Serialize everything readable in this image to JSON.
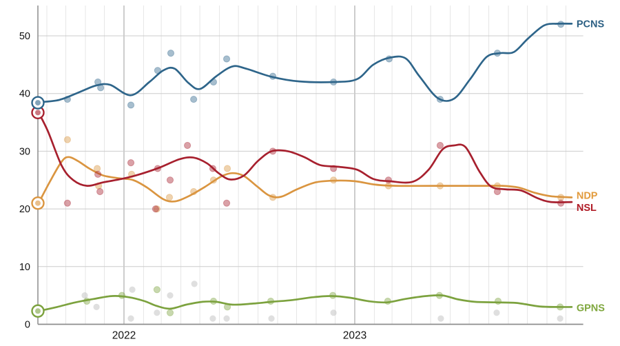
{
  "chart_data": {
    "type": "scatter",
    "subtype": "poll-scatter-with-smoothed-trend-lines",
    "title": "",
    "xlabel": "",
    "ylabel": "",
    "grid": {
      "horizontal_step": 10,
      "vertical": "monthly",
      "dark_vertical_at_year_start": true
    },
    "legend_position": "right-end-labels",
    "x_axis": {
      "domain_years": [
        2021.627,
        2023.99
      ],
      "ticks": [
        {
          "label": "2022",
          "year": 2022.0
        },
        {
          "label": "2023",
          "year": 2023.0
        }
      ]
    },
    "y_axis": {
      "domain": [
        0,
        53.5
      ],
      "ticks": [
        0,
        10,
        20,
        30,
        40,
        50
      ]
    },
    "series": [
      {
        "name": "GPNS",
        "label": "GPNS",
        "color": "#7ca23e",
        "label_color": "#7fa73e",
        "election_result": {
          "year": 2021.627,
          "value": 2.3
        },
        "trend": [
          [
            2021.63,
            2.3
          ],
          [
            2021.71,
            3.0
          ],
          [
            2021.79,
            3.8
          ],
          [
            2021.87,
            4.4
          ],
          [
            2021.95,
            4.9
          ],
          [
            2022.02,
            4.7
          ],
          [
            2022.09,
            4.0
          ],
          [
            2022.14,
            3.2
          ],
          [
            2022.2,
            2.7
          ],
          [
            2022.27,
            3.4
          ],
          [
            2022.34,
            3.9
          ],
          [
            2022.4,
            3.9
          ],
          [
            2022.47,
            3.4
          ],
          [
            2022.56,
            3.6
          ],
          [
            2022.64,
            3.9
          ],
          [
            2022.73,
            4.2
          ],
          [
            2022.82,
            4.7
          ],
          [
            2022.9,
            4.9
          ],
          [
            2022.98,
            4.6
          ],
          [
            2023.06,
            4.0
          ],
          [
            2023.14,
            3.8
          ],
          [
            2023.22,
            4.4
          ],
          [
            2023.31,
            4.9
          ],
          [
            2023.38,
            5.0
          ],
          [
            2023.45,
            4.3
          ],
          [
            2023.52,
            3.9
          ],
          [
            2023.61,
            3.8
          ],
          [
            2023.7,
            3.7
          ],
          [
            2023.8,
            3.1
          ],
          [
            2023.88,
            3.0
          ],
          [
            2023.94,
            3.0
          ]
        ],
        "polls": [
          [
            2021.839,
            4
          ],
          [
            2021.991,
            5
          ],
          [
            2022.143,
            6
          ],
          [
            2022.2,
            2
          ],
          [
            2022.388,
            4
          ],
          [
            2022.448,
            3
          ],
          [
            2022.636,
            4
          ],
          [
            2022.905,
            5
          ],
          [
            2023.143,
            4
          ],
          [
            2023.367,
            5
          ],
          [
            2023.621,
            4
          ],
          [
            2023.89,
            3
          ]
        ]
      },
      {
        "name": "NDP",
        "label": "NDP",
        "color": "#da9540",
        "label_color": "#e29b3d",
        "election_result": {
          "year": 2021.627,
          "value": 21.0
        },
        "trend": [
          [
            2021.63,
            21.0
          ],
          [
            2021.68,
            24.8
          ],
          [
            2021.73,
            28.2
          ],
          [
            2021.76,
            29.0
          ],
          [
            2021.8,
            28.3
          ],
          [
            2021.85,
            27.0
          ],
          [
            2021.91,
            25.8
          ],
          [
            2021.98,
            25.3
          ],
          [
            2022.04,
            25.0
          ],
          [
            2022.1,
            23.7
          ],
          [
            2022.17,
            21.7
          ],
          [
            2022.22,
            21.3
          ],
          [
            2022.28,
            22.2
          ],
          [
            2022.35,
            23.8
          ],
          [
            2022.42,
            25.6
          ],
          [
            2022.47,
            26.2
          ],
          [
            2022.52,
            25.7
          ],
          [
            2022.58,
            23.8
          ],
          [
            2022.63,
            22.3
          ],
          [
            2022.68,
            22.1
          ],
          [
            2022.75,
            23.4
          ],
          [
            2022.83,
            24.6
          ],
          [
            2022.91,
            24.9
          ],
          [
            2023.0,
            24.8
          ],
          [
            2023.09,
            24.2
          ],
          [
            2023.18,
            24.0
          ],
          [
            2023.35,
            24.0
          ],
          [
            2023.55,
            24.0
          ],
          [
            2023.64,
            24.0
          ],
          [
            2023.71,
            23.7
          ],
          [
            2023.78,
            22.8
          ],
          [
            2023.85,
            22.2
          ],
          [
            2023.94,
            22.0
          ]
        ],
        "polls": [
          [
            2021.755,
            32
          ],
          [
            2021.884,
            27
          ],
          [
            2021.89,
            24
          ],
          [
            2022.033,
            26
          ],
          [
            2022.143,
            20
          ],
          [
            2022.197,
            22
          ],
          [
            2022.302,
            23
          ],
          [
            2022.388,
            25
          ],
          [
            2022.448,
            27
          ],
          [
            2022.645,
            22
          ],
          [
            2022.908,
            25
          ],
          [
            2023.146,
            24
          ],
          [
            2023.37,
            24
          ],
          [
            2023.618,
            24
          ],
          [
            2023.893,
            22
          ]
        ]
      },
      {
        "name": "NSL",
        "label": "NSL",
        "color": "#a7202e",
        "label_color": "#b01b26",
        "election_result": {
          "year": 2021.627,
          "value": 36.7
        },
        "trend": [
          [
            2021.63,
            36.7
          ],
          [
            2021.67,
            33.5
          ],
          [
            2021.73,
            27.5
          ],
          [
            2021.78,
            25.0
          ],
          [
            2021.84,
            24.0
          ],
          [
            2021.91,
            24.6
          ],
          [
            2021.99,
            25.2
          ],
          [
            2022.06,
            25.9
          ],
          [
            2022.15,
            27.1
          ],
          [
            2022.24,
            28.6
          ],
          [
            2022.3,
            28.9
          ],
          [
            2022.36,
            27.9
          ],
          [
            2022.41,
            26.2
          ],
          [
            2022.46,
            25.1
          ],
          [
            2022.52,
            25.8
          ],
          [
            2022.58,
            28.3
          ],
          [
            2022.64,
            30.0
          ],
          [
            2022.71,
            30.0
          ],
          [
            2022.78,
            29.0
          ],
          [
            2022.85,
            27.6
          ],
          [
            2022.93,
            27.3
          ],
          [
            2023.01,
            26.8
          ],
          [
            2023.08,
            25.2
          ],
          [
            2023.15,
            24.8
          ],
          [
            2023.25,
            24.7
          ],
          [
            2023.32,
            26.8
          ],
          [
            2023.38,
            30.3
          ],
          [
            2023.43,
            31.0
          ],
          [
            2023.48,
            30.7
          ],
          [
            2023.54,
            26.5
          ],
          [
            2023.59,
            23.9
          ],
          [
            2023.65,
            23.4
          ],
          [
            2023.72,
            23.2
          ],
          [
            2023.79,
            21.9
          ],
          [
            2023.85,
            21.2
          ],
          [
            2023.94,
            21.2
          ]
        ],
        "polls": [
          [
            2021.755,
            21
          ],
          [
            2021.887,
            26
          ],
          [
            2021.896,
            23
          ],
          [
            2022.03,
            28
          ],
          [
            2022.137,
            20
          ],
          [
            2022.146,
            27
          ],
          [
            2022.2,
            25
          ],
          [
            2022.275,
            31
          ],
          [
            2022.385,
            27
          ],
          [
            2022.445,
            21
          ],
          [
            2022.645,
            30
          ],
          [
            2022.908,
            27
          ],
          [
            2023.146,
            25
          ],
          [
            2023.37,
            31
          ],
          [
            2023.618,
            23
          ],
          [
            2023.893,
            21
          ]
        ]
      },
      {
        "name": "PCNS",
        "label": "PCNS",
        "color": "#2e658a",
        "label_color": "#2b5f83",
        "election_result": {
          "year": 2021.627,
          "value": 38.4
        },
        "trend": [
          [
            2021.63,
            38.5
          ],
          [
            2021.72,
            38.9
          ],
          [
            2021.81,
            40.3
          ],
          [
            2021.88,
            41.4
          ],
          [
            2021.94,
            41.5
          ],
          [
            2022.03,
            39.7
          ],
          [
            2022.11,
            42.0
          ],
          [
            2022.17,
            44.0
          ],
          [
            2022.22,
            44.3
          ],
          [
            2022.28,
            41.8
          ],
          [
            2022.33,
            40.8
          ],
          [
            2022.4,
            43.0
          ],
          [
            2022.47,
            44.7
          ],
          [
            2022.53,
            44.3
          ],
          [
            2022.64,
            42.9
          ],
          [
            2022.76,
            42.1
          ],
          [
            2022.91,
            42.0
          ],
          [
            2023.01,
            42.5
          ],
          [
            2023.08,
            45.0
          ],
          [
            2023.15,
            46.2
          ],
          [
            2023.22,
            46.1
          ],
          [
            2023.28,
            43.0
          ],
          [
            2023.36,
            39.2
          ],
          [
            2023.43,
            39.1
          ],
          [
            2023.5,
            42.5
          ],
          [
            2023.57,
            46.3
          ],
          [
            2023.63,
            47.0
          ],
          [
            2023.69,
            47.2
          ],
          [
            2023.75,
            49.5
          ],
          [
            2023.82,
            51.8
          ],
          [
            2023.88,
            52.1
          ],
          [
            2023.94,
            52.1
          ]
        ],
        "polls": [
          [
            2021.755,
            39
          ],
          [
            2021.887,
            42
          ],
          [
            2021.899,
            41
          ],
          [
            2022.03,
            38
          ],
          [
            2022.146,
            44
          ],
          [
            2022.203,
            47
          ],
          [
            2022.302,
            39
          ],
          [
            2022.388,
            42
          ],
          [
            2022.445,
            46
          ],
          [
            2022.645,
            43
          ],
          [
            2022.908,
            42
          ],
          [
            2023.149,
            46
          ],
          [
            2023.37,
            39
          ],
          [
            2023.618,
            47
          ],
          [
            2023.893,
            52
          ]
        ]
      }
    ],
    "faded_polls": {
      "color": "#c4c4c4",
      "points": [
        [
          2021.83,
          5
        ],
        [
          2021.881,
          3
        ],
        [
          2022.03,
          1
        ],
        [
          2022.036,
          6
        ],
        [
          2022.143,
          2
        ],
        [
          2022.2,
          5
        ],
        [
          2022.305,
          7
        ],
        [
          2022.385,
          1
        ],
        [
          2022.445,
          1
        ],
        [
          2022.639,
          1
        ],
        [
          2022.908,
          2
        ],
        [
          2023.373,
          1
        ],
        [
          2023.615,
          2
        ],
        [
          2023.89,
          1
        ]
      ]
    },
    "colors": {
      "grid_month": "#e6e6e6",
      "grid_year": "#b8b8b8",
      "grid_horizontal": "#cbcbcb",
      "axis": "#8c8c8c",
      "tick_text": "#111111",
      "background": "#ffffff"
    }
  }
}
